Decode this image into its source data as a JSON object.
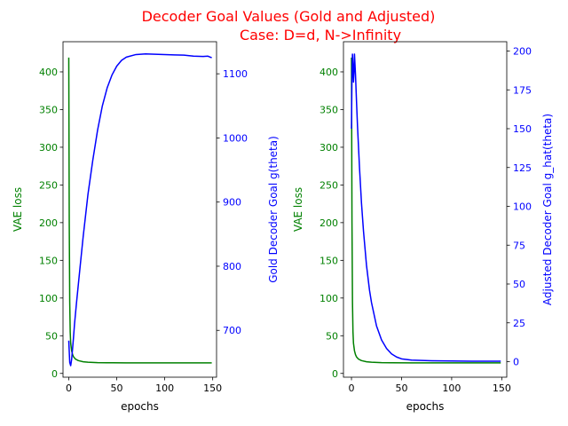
{
  "figure": {
    "title_line1": "Decoder Goal Values (Gold and Adjusted)",
    "title_line2": "Case: D=d, N->Infinity",
    "title_color": "#ff0000"
  },
  "colors": {
    "left_axis": "#008000",
    "right_axis": "#0000ff",
    "frame": "#000000"
  },
  "chart_data": [
    {
      "type": "line",
      "xlabel": "epochs",
      "ylabel_left": "VAE loss",
      "ylabel_right": "Gold Decoder Goal g(theta)",
      "xlim": [
        -6,
        154
      ],
      "ylim_left": [
        -5,
        440
      ],
      "ylim_right": [
        627,
        1150
      ],
      "xticks": [
        0,
        50,
        100,
        150
      ],
      "yticks_left": [
        0,
        50,
        100,
        150,
        200,
        250,
        300,
        350,
        400
      ],
      "yticks_right": [
        700,
        800,
        900,
        1000,
        1100
      ],
      "grid": false,
      "series": [
        {
          "axis": "left",
          "color": "#008000",
          "x": [
            0,
            0.5,
            1,
            1.5,
            2,
            3,
            4,
            5,
            7,
            10,
            15,
            20,
            30,
            40,
            60,
            80,
            100,
            120,
            149
          ],
          "y": [
            419,
            200,
            95,
            55,
            40,
            30,
            25,
            22,
            19,
            17,
            15.5,
            14.8,
            14.3,
            14.1,
            14,
            14,
            14,
            14,
            14
          ]
        },
        {
          "axis": "right",
          "color": "#0000ff",
          "x": [
            0,
            1,
            2,
            3,
            4,
            5,
            6,
            8,
            10,
            12,
            15,
            20,
            25,
            30,
            35,
            40,
            45,
            50,
            55,
            60,
            70,
            80,
            90,
            100,
            110,
            120,
            130,
            140,
            145,
            149
          ],
          "y": [
            684,
            650,
            645,
            655,
            672,
            690,
            710,
            742,
            772,
            802,
            846,
            912,
            965,
            1012,
            1050,
            1078,
            1098,
            1112,
            1121,
            1126,
            1130,
            1131,
            1130.5,
            1130,
            1129.5,
            1129,
            1127.5,
            1127,
            1127.5,
            1125
          ]
        }
      ]
    },
    {
      "type": "line",
      "xlabel": "epochs",
      "ylabel_left": "VAE loss",
      "ylabel_right": "Adjusted Decoder Goal g_hat(theta)",
      "xlim": [
        -8,
        155
      ],
      "ylim_left": [
        -5,
        440
      ],
      "ylim_right": [
        -10,
        206
      ],
      "xticks": [
        0,
        50,
        100,
        150
      ],
      "yticks_left": [
        0,
        50,
        100,
        150,
        200,
        250,
        300,
        350,
        400
      ],
      "yticks_right": [
        0,
        25,
        50,
        75,
        100,
        125,
        150,
        175,
        200
      ],
      "grid": false,
      "series": [
        {
          "axis": "left",
          "color": "#008000",
          "x": [
            0,
            0.5,
            1,
            1.5,
            2,
            3,
            4,
            5,
            7,
            10,
            15,
            20,
            30,
            40,
            60,
            80,
            100,
            120,
            149
          ],
          "y": [
            419,
            200,
            95,
            55,
            40,
            30,
            25,
            22,
            19,
            17,
            15.5,
            14.8,
            14.3,
            14.1,
            14,
            14,
            14,
            14,
            14
          ]
        },
        {
          "axis": "right",
          "color": "#0000ff",
          "x": [
            0,
            0.5,
            1,
            1.5,
            2,
            2.5,
            3,
            4,
            5,
            6,
            8,
            10,
            12,
            15,
            18,
            20,
            25,
            30,
            35,
            40,
            45,
            50,
            60,
            80,
            100,
            120,
            149
          ],
          "y": [
            150,
            185,
            198,
            190,
            180,
            186,
            198,
            185,
            168,
            152,
            125,
            102,
            84,
            62,
            46,
            38,
            23,
            14,
            8.5,
            5,
            3,
            1.8,
            1,
            0.6,
            0.4,
            0.3,
            0.3
          ]
        }
      ]
    }
  ]
}
